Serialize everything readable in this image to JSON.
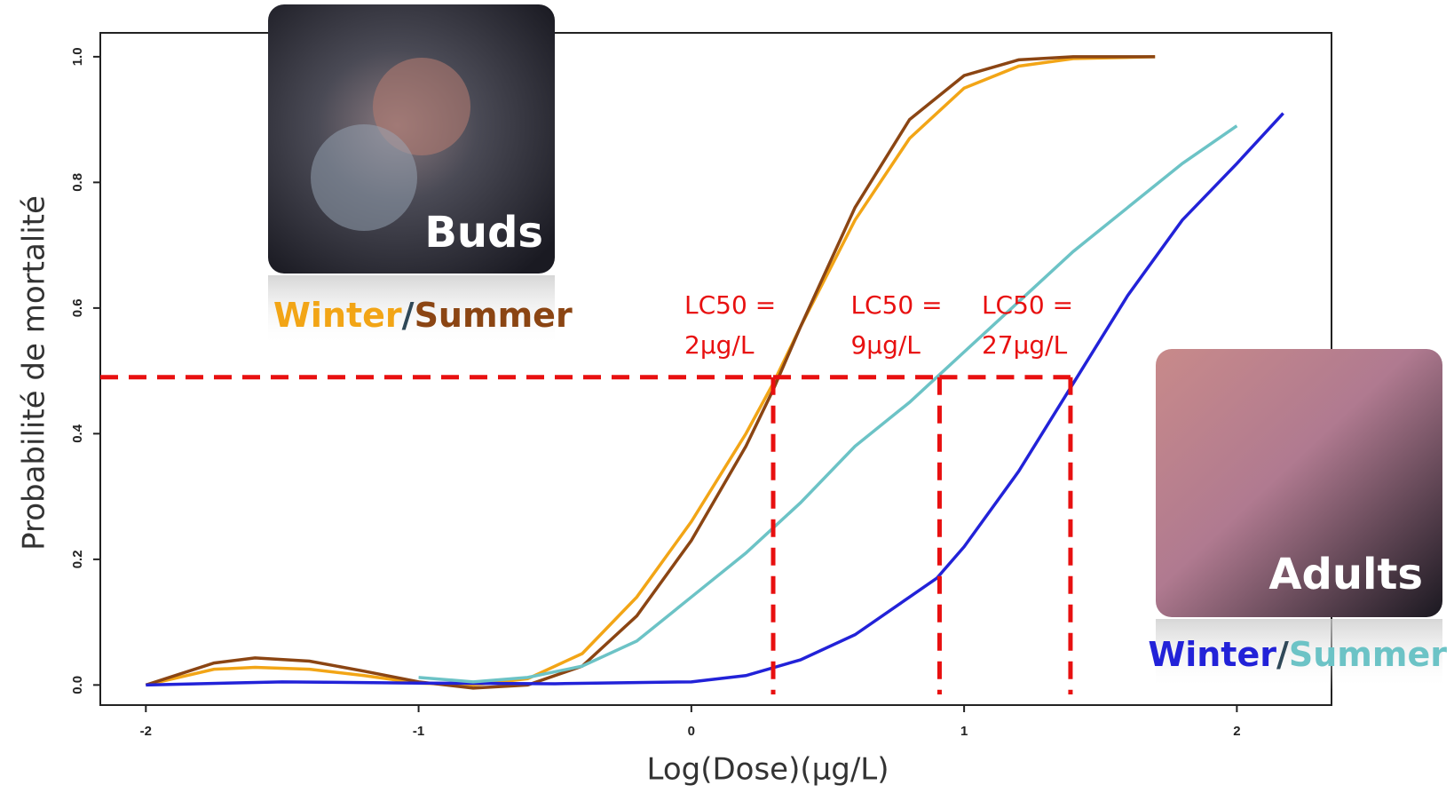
{
  "chart_data": {
    "type": "line",
    "xlabel": "Log(Dose)(µg/L)",
    "ylabel": "Probabilité de mortalité",
    "xlim": [
      -2.167,
      2.347
    ],
    "ylim": [
      -0.032,
      1.038
    ],
    "xticks": [
      -2,
      -1,
      0,
      1,
      2
    ],
    "yticks": [
      {
        "value": 0,
        "label": "0.0"
      },
      0.2,
      0.4,
      0.6,
      0.8,
      {
        "value": 1,
        "label": "1.0"
      }
    ],
    "groups": [
      {
        "label": "Buds",
        "separator": "/",
        "series": [
          {
            "name": "Winter",
            "color": "#f2a516",
            "x": [
              -2,
              -1.75,
              -1.6,
              -1.4,
              -1.2,
              -1,
              -0.8,
              -0.6,
              -0.4,
              -0.2,
              0,
              0.2,
              0.3,
              0.4,
              0.6,
              0.8,
              1.0,
              1.2,
              1.4,
              1.7
            ],
            "values": [
              0.0,
              0.025,
              0.028,
              0.025,
              0.015,
              0.003,
              0.0,
              0.01,
              0.05,
              0.14,
              0.26,
              0.4,
              0.48,
              0.57,
              0.74,
              0.87,
              0.95,
              0.985,
              0.997,
              1.0
            ]
          },
          {
            "name": "Summer",
            "color": "#8b4513",
            "x": [
              -2,
              -1.75,
              -1.6,
              -1.4,
              -1.2,
              -1,
              -0.8,
              -0.6,
              -0.4,
              -0.2,
              0,
              0.2,
              0.3,
              0.4,
              0.6,
              0.8,
              1.0,
              1.2,
              1.4,
              1.7
            ],
            "values": [
              0.0,
              0.035,
              0.043,
              0.038,
              0.022,
              0.005,
              -0.005,
              0.0,
              0.03,
              0.11,
              0.23,
              0.38,
              0.47,
              0.57,
              0.76,
              0.9,
              0.97,
              0.995,
              1.0,
              1.0
            ]
          }
        ]
      },
      {
        "label": "Adults",
        "separator": "/",
        "series": [
          {
            "name": "Winter",
            "color": "#2222d8",
            "x": [
              -2,
              -1.5,
              -1,
              -0.5,
              0,
              0.2,
              0.4,
              0.6,
              0.8,
              0.9,
              1.0,
              1.2,
              1.4,
              1.6,
              1.8,
              2.0,
              2.17
            ],
            "values": [
              0.0,
              0.005,
              0.003,
              0.002,
              0.005,
              0.015,
              0.04,
              0.08,
              0.14,
              0.17,
              0.22,
              0.34,
              0.48,
              0.62,
              0.74,
              0.83,
              0.91
            ]
          },
          {
            "name": "Summer",
            "color": "#6cc3c6",
            "x": [
              -1,
              -0.8,
              -0.6,
              -0.4,
              -0.2,
              0,
              0.2,
              0.4,
              0.6,
              0.8,
              0.9,
              1.0,
              1.2,
              1.4,
              1.6,
              1.8,
              2.0
            ],
            "values": [
              0.012,
              0.005,
              0.012,
              0.03,
              0.07,
              0.14,
              0.21,
              0.29,
              0.38,
              0.45,
              0.49,
              0.53,
              0.61,
              0.69,
              0.76,
              0.83,
              0.89
            ]
          }
        ]
      }
    ],
    "annotations": [
      {
        "lines": [
          "LC50 =",
          "2µg/L"
        ],
        "x": 0.3,
        "y": 0.49
      },
      {
        "lines": [
          "LC50 =",
          "9µg/L"
        ],
        "x": 0.91,
        "y": 0.49
      },
      {
        "lines": [
          "LC50 =",
          "27µg/L"
        ],
        "x": 1.39,
        "y": 0.49
      }
    ]
  }
}
